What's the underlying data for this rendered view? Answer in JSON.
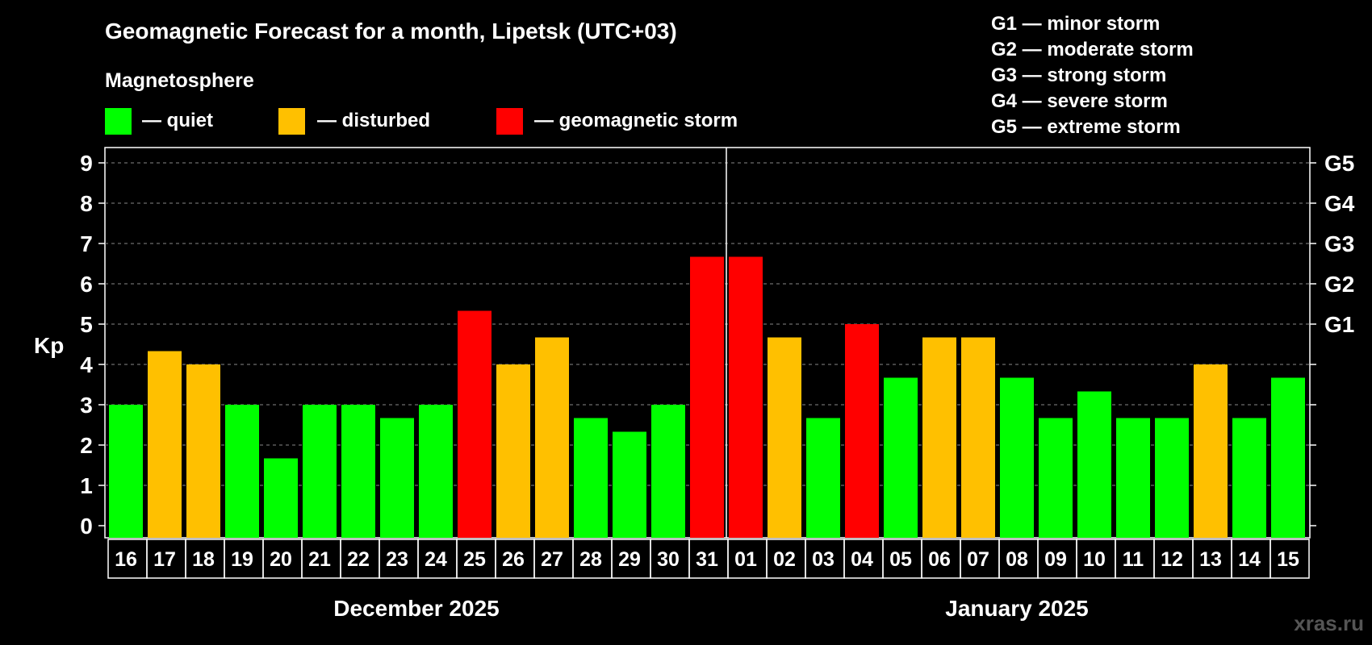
{
  "chart_data": {
    "type": "bar",
    "title": "Geomagnetic Forecast for a month, Lipetsk (UTC+03)",
    "subtitle": "Magnetosphere",
    "ylabel": "Kp",
    "ylim": [
      0,
      9
    ],
    "yticks": [
      "0",
      "1",
      "2",
      "3",
      "4",
      "5",
      "6",
      "7",
      "8",
      "9"
    ],
    "g_levels": [
      {
        "label": "G1",
        "kp": 5
      },
      {
        "label": "G2",
        "kp": 6
      },
      {
        "label": "G3",
        "kp": 7
      },
      {
        "label": "G4",
        "kp": 8
      },
      {
        "label": "G5",
        "kp": 9
      }
    ],
    "legend": [
      {
        "label": "— quiet",
        "color": "#00ff00"
      },
      {
        "label": "— disturbed",
        "color": "#ffc000"
      },
      {
        "label": "— geomagnetic storm",
        "color": "#ff0000"
      }
    ],
    "storm_scale": [
      "G1 — minor storm",
      "G2 — moderate storm",
      "G3 — strong storm",
      "G4 — severe storm",
      "G5 — extreme storm"
    ],
    "categories": [
      "16",
      "17",
      "18",
      "19",
      "20",
      "21",
      "22",
      "23",
      "24",
      "25",
      "26",
      "27",
      "28",
      "29",
      "30",
      "31",
      "01",
      "02",
      "03",
      "04",
      "05",
      "06",
      "07",
      "08",
      "09",
      "10",
      "11",
      "12",
      "13",
      "14",
      "15"
    ],
    "values": [
      3.0,
      4.33,
      4.0,
      3.0,
      1.67,
      3.0,
      3.0,
      2.67,
      3.0,
      5.33,
      4.0,
      4.67,
      2.67,
      2.33,
      3.0,
      6.67,
      6.67,
      4.67,
      2.67,
      5.0,
      3.67,
      4.67,
      4.67,
      3.67,
      2.67,
      3.33,
      2.67,
      2.67,
      4.0,
      2.67,
      3.67
    ],
    "levels": [
      "quiet",
      "disturbed",
      "disturbed",
      "quiet",
      "quiet",
      "quiet",
      "quiet",
      "quiet",
      "quiet",
      "storm",
      "disturbed",
      "disturbed",
      "quiet",
      "quiet",
      "quiet",
      "storm",
      "storm",
      "disturbed",
      "quiet",
      "storm",
      "quiet",
      "disturbed",
      "disturbed",
      "quiet",
      "quiet",
      "quiet",
      "quiet",
      "quiet",
      "disturbed",
      "quiet",
      "quiet"
    ],
    "level_colors": {
      "quiet": "#00ff00",
      "disturbed": "#ffc000",
      "storm": "#ff0000"
    },
    "months": [
      {
        "label": "December 2025",
        "from": 0,
        "to": 15
      },
      {
        "label": "January 2025",
        "from": 16,
        "to": 30
      }
    ]
  },
  "watermark": "xras.ru"
}
